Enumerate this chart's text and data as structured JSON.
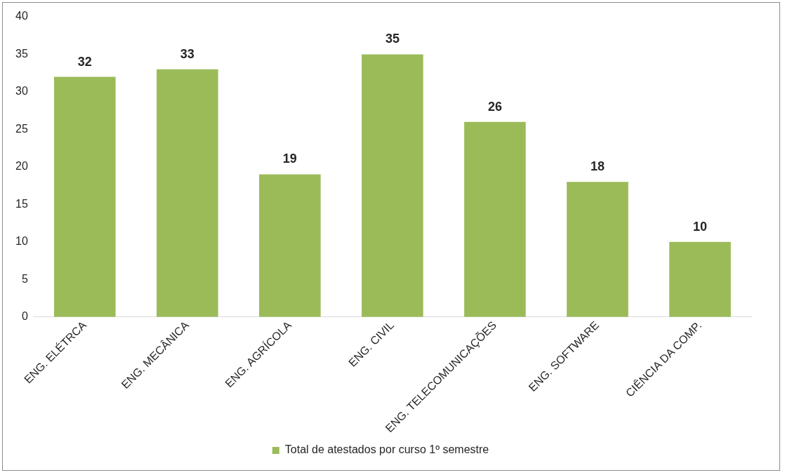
{
  "chart_data": {
    "type": "bar",
    "categories": [
      "ENG. ELÉTRCA",
      "ENG. MECÂNICA",
      "ENG. AGRÍCOLA",
      "ENG. CIVIL",
      "ENG. TELECOMUNICAÇÕES",
      "ENG. SOFTWARE",
      "CIÊNCIA DA COMP."
    ],
    "series": [
      {
        "name": "Total de atestados por curso 1º semestre",
        "color": "#9bbb59",
        "values": [
          32,
          33,
          19,
          35,
          26,
          18,
          10
        ]
      }
    ],
    "ylim": [
      0,
      40
    ],
    "yticks": [
      0,
      5,
      10,
      15,
      20,
      25,
      30,
      35,
      40
    ],
    "grid": false,
    "legend": "bottom",
    "data_labels": true
  }
}
